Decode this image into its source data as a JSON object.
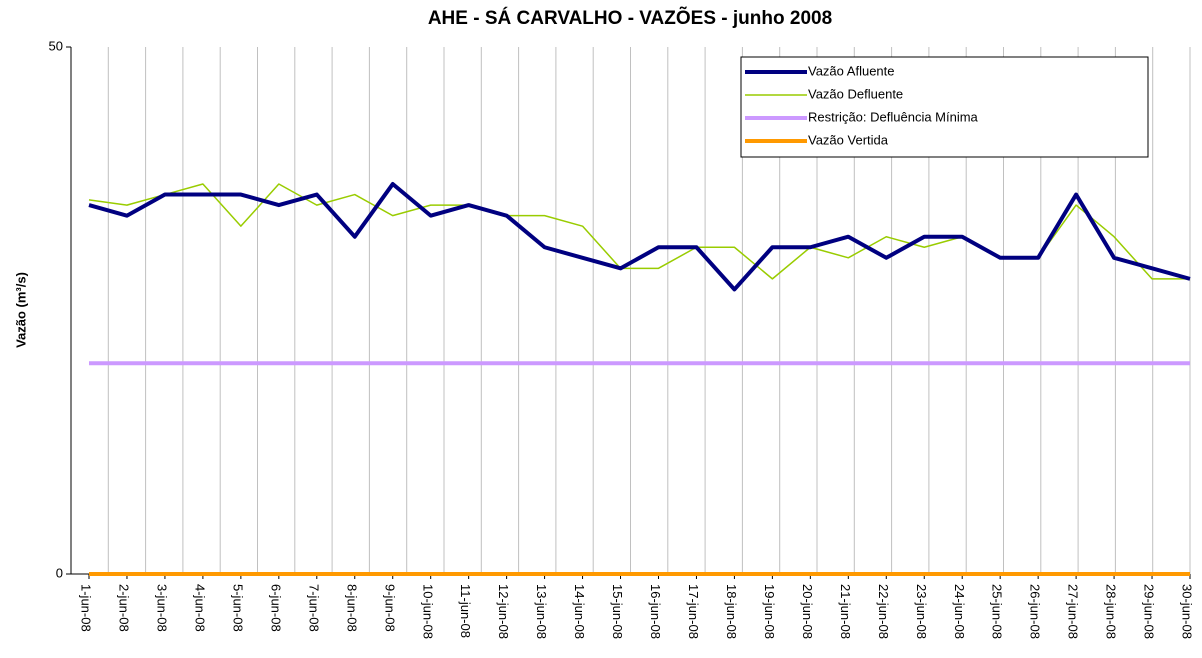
{
  "chart_data": {
    "type": "line",
    "title": "AHE - SÁ CARVALHO - VAZÕES - junho 2008",
    "y_label": "Vazão (m³/s)",
    "categories": [
      "1-jun-08",
      "2-jun-08",
      "3-jun-08",
      "4-jun-08",
      "5-jun-08",
      "6-jun-08",
      "7-jun-08",
      "8-jun-08",
      "9-jun-08",
      "10-jun-08",
      "11-jun-08",
      "12-jun-08",
      "13-jun-08",
      "14-jun-08",
      "15-jun-08",
      "16-jun-08",
      "17-jun-08",
      "18-jun-08",
      "19-jun-08",
      "20-jun-08",
      "21-jun-08",
      "22-jun-08",
      "23-jun-08",
      "24-jun-08",
      "25-jun-08",
      "26-jun-08",
      "27-jun-08",
      "28-jun-08",
      "29-jun-08",
      "30-jun-08"
    ],
    "series": [
      {
        "name": "Vazão Afluente",
        "color": "#000080",
        "width": 4,
        "values": [
          35,
          34,
          36,
          36,
          36,
          35,
          36,
          32,
          37,
          34,
          35,
          34,
          31,
          30,
          29,
          31,
          31,
          27,
          31,
          31,
          32,
          30,
          32,
          32,
          30,
          30,
          36,
          30,
          29,
          28
        ]
      },
      {
        "name": "Vazão Defluente",
        "color": "#99cc00",
        "width": 1.5,
        "values": [
          35.5,
          35,
          36,
          37,
          33,
          37,
          35,
          36,
          34,
          35,
          35,
          34,
          34,
          33,
          29,
          29,
          31,
          31,
          28,
          31,
          30,
          32,
          31,
          32,
          30,
          30,
          35,
          32,
          28,
          28
        ]
      },
      {
        "name": "Restrição: Defluência Mínima",
        "color": "#cc99ff",
        "width": 4,
        "values": [
          20,
          20,
          20,
          20,
          20,
          20,
          20,
          20,
          20,
          20,
          20,
          20,
          20,
          20,
          20,
          20,
          20,
          20,
          20,
          20,
          20,
          20,
          20,
          20,
          20,
          20,
          20,
          20,
          20,
          20
        ]
      },
      {
        "name": "Vazão Vertida",
        "color": "#ff9900",
        "width": 4,
        "values": [
          0,
          0,
          0,
          0,
          0,
          0,
          0,
          0,
          0,
          0,
          0,
          0,
          0,
          0,
          0,
          0,
          0,
          0,
          0,
          0,
          0,
          0,
          0,
          0,
          0,
          0,
          0,
          0,
          0,
          0
        ]
      }
    ],
    "ylim": [
      0,
      50
    ],
    "yticks": [
      0,
      50
    ],
    "grid": true,
    "legend": "top-right"
  }
}
